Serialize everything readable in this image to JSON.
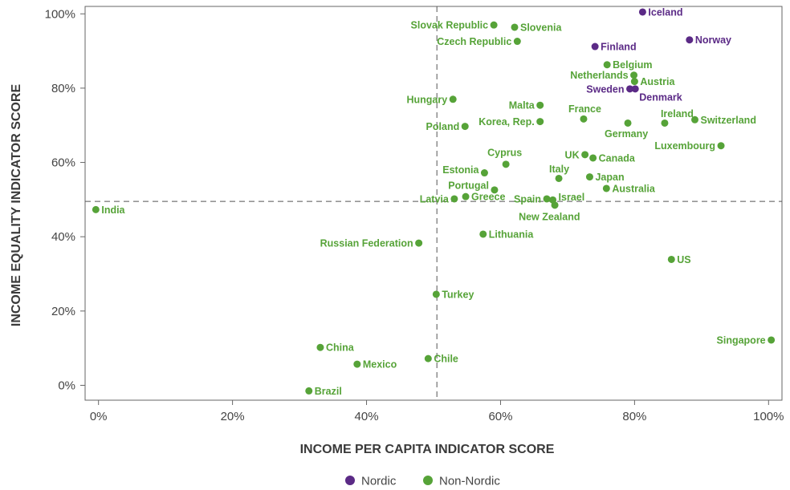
{
  "chart_data": {
    "type": "scatter",
    "xlabel": "INCOME PER CAPITA INDICATOR SCORE",
    "ylabel": "INCOME EQUALITY INDICATOR SCORE",
    "xlim": [
      -2,
      102
    ],
    "ylim": [
      -4,
      102
    ],
    "x_ticks": [
      0,
      20,
      40,
      60,
      80,
      100
    ],
    "y_ticks": [
      0,
      20,
      40,
      60,
      80,
      100
    ],
    "x_tick_labels": [
      "0%",
      "20%",
      "40%",
      "60%",
      "80%",
      "100%"
    ],
    "y_tick_labels": [
      "0%",
      "20%",
      "40%",
      "60%",
      "80%",
      "100%"
    ],
    "grid": false,
    "reference_lines": {
      "x": 50.5,
      "y": 49.5,
      "style": "dashed"
    },
    "legend": {
      "placement": "bottom-center"
    },
    "series": [
      {
        "name": "Nordic",
        "color": "#5b2a86",
        "points": [
          {
            "label": "Iceland",
            "x": 81.2,
            "y": 100.5
          },
          {
            "label": "Norway",
            "x": 88.2,
            "y": 93.0
          },
          {
            "label": "Finland",
            "x": 74.1,
            "y": 91.2
          },
          {
            "label": "Sweden",
            "x": 79.3,
            "y": 79.8
          },
          {
            "label": "Denmark",
            "x": 80.1,
            "y": 79.8
          }
        ]
      },
      {
        "name": "Non-Nordic",
        "color": "#56a338",
        "points": [
          {
            "label": "Slovak Republic",
            "x": 59.0,
            "y": 97.0
          },
          {
            "label": "Slovenia",
            "x": 62.1,
            "y": 96.4
          },
          {
            "label": "Czech Republic",
            "x": 62.5,
            "y": 92.6
          },
          {
            "label": "Belgium",
            "x": 75.9,
            "y": 86.3
          },
          {
            "label": "Netherlands",
            "x": 79.9,
            "y": 83.5
          },
          {
            "label": "Austria",
            "x": 80.0,
            "y": 81.8
          },
          {
            "label": "Hungary",
            "x": 52.9,
            "y": 77.0
          },
          {
            "label": "Malta",
            "x": 65.9,
            "y": 75.4
          },
          {
            "label": "France",
            "x": 72.4,
            "y": 71.7
          },
          {
            "label": "Ireland",
            "x": 84.5,
            "y": 70.6
          },
          {
            "label": "Switzerland",
            "x": 89.0,
            "y": 71.5
          },
          {
            "label": "Germany",
            "x": 79.0,
            "y": 70.6
          },
          {
            "label": "Poland",
            "x": 54.7,
            "y": 69.7
          },
          {
            "label": "Korea, Rep.",
            "x": 65.9,
            "y": 71.0
          },
          {
            "label": "Luxembourg",
            "x": 92.9,
            "y": 64.5
          },
          {
            "label": "UK",
            "x": 72.6,
            "y": 62.1
          },
          {
            "label": "Canada",
            "x": 73.8,
            "y": 61.2
          },
          {
            "label": "Cyprus",
            "x": 60.8,
            "y": 59.5
          },
          {
            "label": "Estonia",
            "x": 57.6,
            "y": 57.2
          },
          {
            "label": "Italy",
            "x": 68.7,
            "y": 55.7
          },
          {
            "label": "Japan",
            "x": 73.3,
            "y": 56.1
          },
          {
            "label": "Australia",
            "x": 75.8,
            "y": 53.0
          },
          {
            "label": "Portugal",
            "x": 59.1,
            "y": 52.6
          },
          {
            "label": "Latvia",
            "x": 53.1,
            "y": 50.2
          },
          {
            "label": "Greece",
            "x": 54.8,
            "y": 50.8
          },
          {
            "label": "Spain",
            "x": 66.9,
            "y": 50.2
          },
          {
            "label": "Israel",
            "x": 67.8,
            "y": 49.9
          },
          {
            "label": "New Zealand",
            "x": 68.1,
            "y": 48.5
          },
          {
            "label": "India",
            "x": -0.4,
            "y": 47.3
          },
          {
            "label": "Lithuania",
            "x": 57.4,
            "y": 40.7
          },
          {
            "label": "Russian Federation",
            "x": 47.8,
            "y": 38.3
          },
          {
            "label": "US",
            "x": 85.5,
            "y": 33.9
          },
          {
            "label": "Turkey",
            "x": 50.4,
            "y": 24.5
          },
          {
            "label": "Singapore",
            "x": 100.4,
            "y": 12.2
          },
          {
            "label": "China",
            "x": 33.1,
            "y": 10.2
          },
          {
            "label": "Chile",
            "x": 49.2,
            "y": 7.2
          },
          {
            "label": "Mexico",
            "x": 38.6,
            "y": 5.7
          },
          {
            "label": "Brazil",
            "x": 31.4,
            "y": -1.5
          }
        ]
      }
    ]
  }
}
